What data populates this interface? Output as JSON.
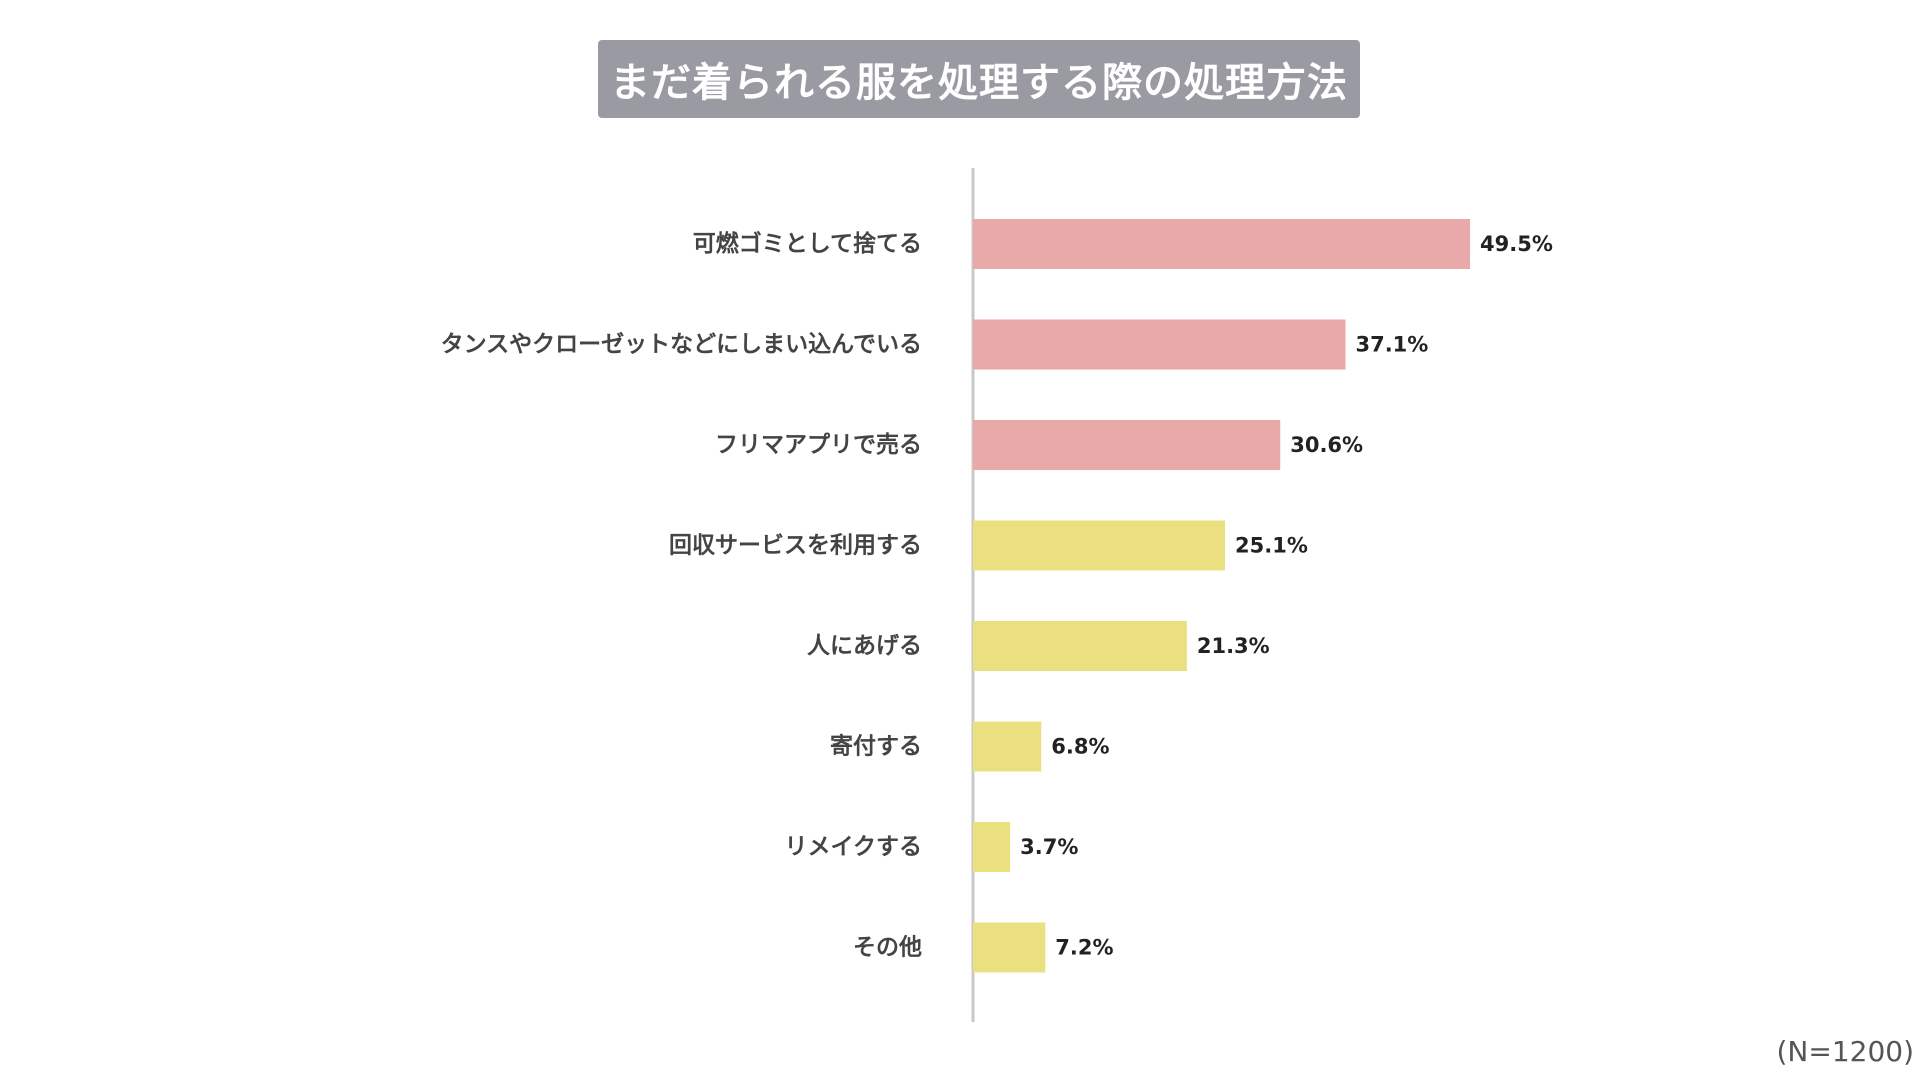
{
  "title": "まだ着られる服を処理する際の処理方法",
  "footnote": "(N=1200)",
  "colors": {
    "title_bg": "#9a9aa2",
    "highlight": "#e8a9a8",
    "normal": "#ebe07f",
    "axis": "#c8c8c8"
  },
  "chart_data": {
    "type": "bar",
    "orientation": "horizontal",
    "unit": "%",
    "categories": [
      "可燃ゴミとして捨てる",
      "タンスやクローゼットなどにしまい込んでいる",
      "フリマアプリで売る",
      "回収サービスを利用する",
      "人にあげる",
      "寄付する",
      "リメイクする",
      "その他"
    ],
    "values": [
      49.5,
      37.1,
      30.6,
      25.1,
      21.3,
      6.8,
      3.7,
      7.2
    ],
    "value_labels": [
      "49.5%",
      "37.1%",
      "30.6%",
      "25.1%",
      "21.3%",
      "6.8%",
      "3.7%",
      "7.2%"
    ],
    "highlighted_top": 3,
    "xlim": [
      0,
      60
    ],
    "grid": false,
    "legend": "none"
  }
}
